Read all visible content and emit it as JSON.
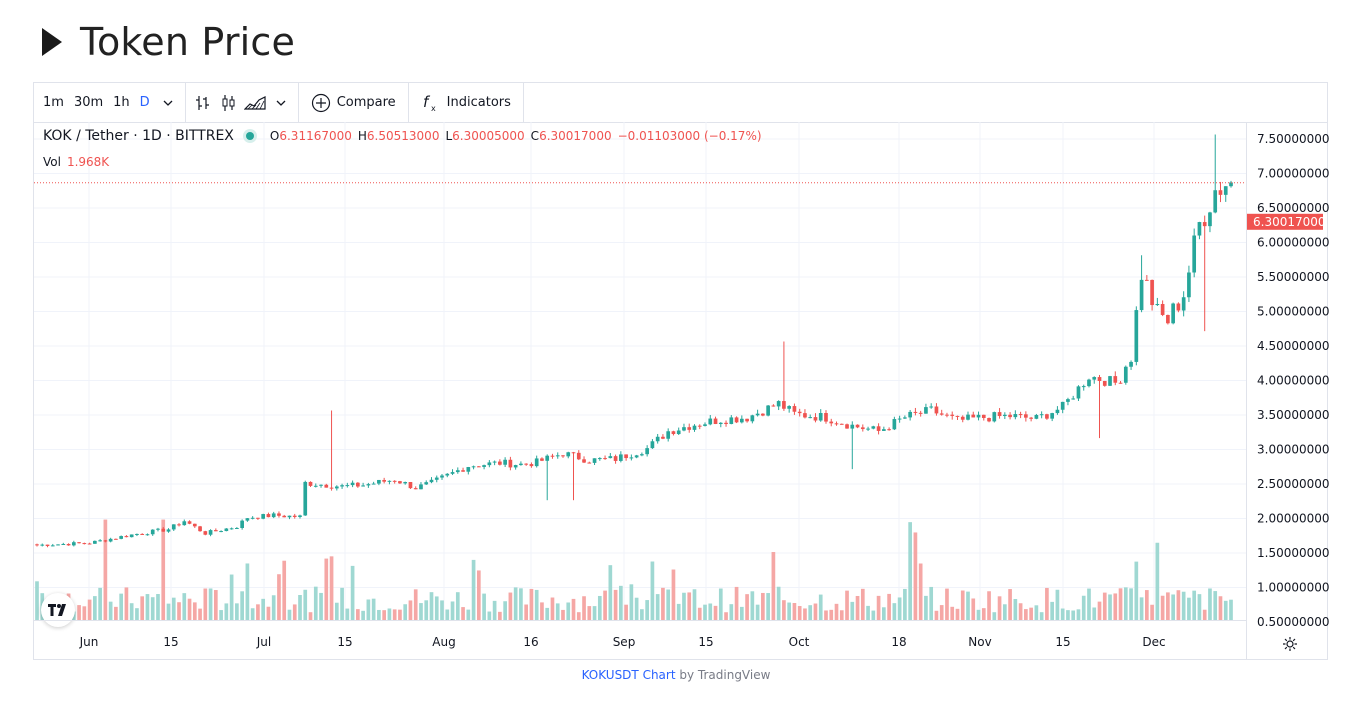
{
  "page": {
    "title": "Token Price"
  },
  "toolbar": {
    "intervals": [
      "1m",
      "30m",
      "1h",
      "D"
    ],
    "active_interval": "D",
    "compare_label": "Compare",
    "indicators_label": "Indicators"
  },
  "legend": {
    "symbol": "KOK / Tether · 1D · BITTREX",
    "open_label": "O",
    "open": "6.31167000",
    "high_label": "H",
    "high": "6.50513000",
    "low_label": "L",
    "low": "6.30005000",
    "close_label": "C",
    "close": "6.30017000",
    "change": "−0.01103000 (−0.17%)",
    "vol_label": "Vol",
    "vol": "1.968K"
  },
  "footer": {
    "link": "KOKUSDT Chart",
    "by": "by TradingView"
  },
  "colors": {
    "up": "#26a69a",
    "down": "#ef5350",
    "up_vol": "#9fd8d2",
    "down_vol": "#f5a7a5",
    "grid": "#f0f3fa"
  },
  "chart_data": {
    "type": "candlestick",
    "title": "",
    "price_axis_ticks": [
      "0.50000000",
      "1.00000000",
      "1.50000000",
      "2.00000000",
      "2.50000000",
      "3.00000000",
      "3.50000000",
      "4.00000000",
      "4.50000000",
      "5.00000000",
      "5.50000000",
      "6.00000000",
      "6.50000000",
      "7.00000000",
      "7.50000000"
    ],
    "time_axis_ticks": [
      "Jun",
      "15",
      "Jul",
      "15",
      "Aug",
      "16",
      "Sep",
      "15",
      "Oct",
      "18",
      "Nov",
      "15",
      "Dec"
    ],
    "last_price": "6.30017000",
    "ylim": [
      0.4,
      7.6
    ],
    "anchor_closes": [
      [
        0,
        1.05
      ],
      [
        10,
        1.08
      ],
      [
        18,
        1.2
      ],
      [
        25,
        1.28
      ],
      [
        28,
        1.4
      ],
      [
        32,
        1.22
      ],
      [
        35,
        1.27
      ],
      [
        38,
        1.32
      ],
      [
        40,
        1.45
      ],
      [
        45,
        1.48
      ],
      [
        50,
        1.46
      ],
      [
        51,
        1.95
      ],
      [
        58,
        1.9
      ],
      [
        62,
        1.92
      ],
      [
        68,
        2.0
      ],
      [
        72,
        1.88
      ],
      [
        75,
        1.95
      ],
      [
        82,
        2.2
      ],
      [
        88,
        2.24
      ],
      [
        92,
        2.22
      ],
      [
        95,
        2.25
      ],
      [
        100,
        2.38
      ],
      [
        105,
        2.28
      ],
      [
        110,
        2.3
      ],
      [
        116,
        2.45
      ],
      [
        120,
        2.7
      ],
      [
        125,
        2.8
      ],
      [
        130,
        2.87
      ],
      [
        135,
        2.9
      ],
      [
        138,
        3.0
      ],
      [
        141,
        3.1
      ],
      [
        144,
        2.95
      ],
      [
        150,
        2.9
      ],
      [
        155,
        2.78
      ],
      [
        160,
        2.7
      ],
      [
        165,
        2.9
      ],
      [
        170,
        3.0
      ],
      [
        175,
        2.85
      ],
      [
        180,
        2.9
      ],
      [
        185,
        2.92
      ],
      [
        190,
        2.88
      ],
      [
        195,
        3.05
      ],
      [
        200,
        3.5
      ],
      [
        205,
        3.4
      ],
      [
        208,
        3.8
      ],
      [
        210,
        5.0
      ],
      [
        213,
        4.4
      ],
      [
        215,
        4.3
      ],
      [
        218,
        4.7
      ],
      [
        221,
        5.7
      ],
      [
        224,
        6.2
      ],
      [
        226,
        6.3
      ]
    ],
    "volume_range": [
      0,
      2.0
    ]
  }
}
